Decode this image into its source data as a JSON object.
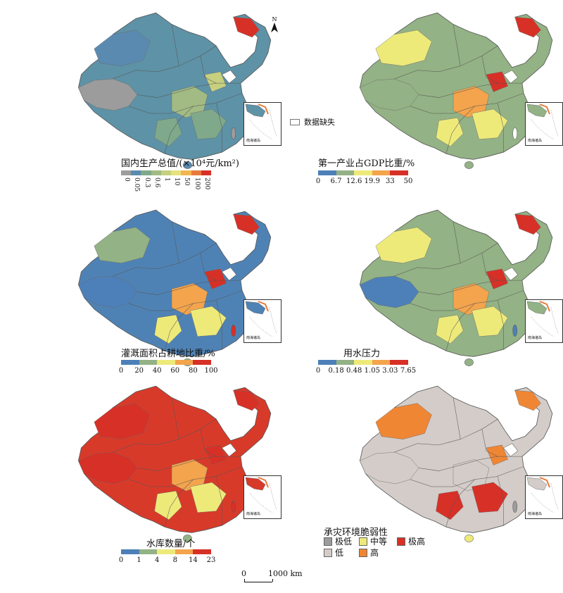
{
  "north_label": "N",
  "missing_label": "数据缺失",
  "inset_label": "南海诸岛",
  "scale": {
    "zero": "0",
    "distance": "1000 km"
  },
  "panels": [
    {
      "title": "国内生产总值/(×10⁴元/km²)",
      "ticks": [
        "0",
        "0.05",
        "0.3",
        "0.6",
        "1",
        "10",
        "50",
        "100",
        "200"
      ],
      "colors": [
        "#9c9c9c",
        "#5b8ab0",
        "#7fa98a",
        "#a2bb84",
        "#c7d07f",
        "#e7e27d",
        "#f3b64f",
        "#e8793c",
        "#d73027"
      ],
      "base": "#5e92a6"
    },
    {
      "title": "第一产业占GDP比重/%",
      "ticks": [
        "0",
        "6.7",
        "12.6",
        "19.9",
        "33",
        "50"
      ],
      "colors": [
        "#4d80b8",
        "#93b285",
        "#eeea7a",
        "#f3a44c",
        "#d73027"
      ],
      "base": "#93b285"
    },
    {
      "title": "灌溉面积占耕地比重/%",
      "ticks": [
        "0",
        "20",
        "40",
        "60",
        "80",
        "100"
      ],
      "colors": [
        "#4d80b8",
        "#93b285",
        "#eeea7a",
        "#f3a44c",
        "#d73027"
      ],
      "base": "#4f82b4"
    },
    {
      "title": "用水压力",
      "ticks": [
        "0",
        "0.18",
        "0.48",
        "1.05",
        "3.03",
        "7.65"
      ],
      "colors": [
        "#4d80b8",
        "#93b285",
        "#eeea7a",
        "#f3a44c",
        "#d73027"
      ],
      "base": "#93b285"
    },
    {
      "title": "水库数量/个",
      "ticks": [
        "0",
        "1",
        "4",
        "8",
        "14",
        "23"
      ],
      "colors": [
        "#4d80b8",
        "#93b285",
        "#eeea7a",
        "#f3a44c",
        "#d73027"
      ],
      "base": "#d83a2a"
    },
    {
      "title": "承灾环境脆弱性",
      "categories": [
        {
          "label": "极低",
          "color": "#9c9c9c"
        },
        {
          "label": "中等",
          "color": "#eeea7a"
        },
        {
          "label": "极高",
          "color": "#d73027"
        },
        {
          "label": "低",
          "color": "#d3ccc8"
        },
        {
          "label": "高",
          "color": "#ef8634"
        }
      ],
      "base": "#d3ccc8"
    }
  ]
}
